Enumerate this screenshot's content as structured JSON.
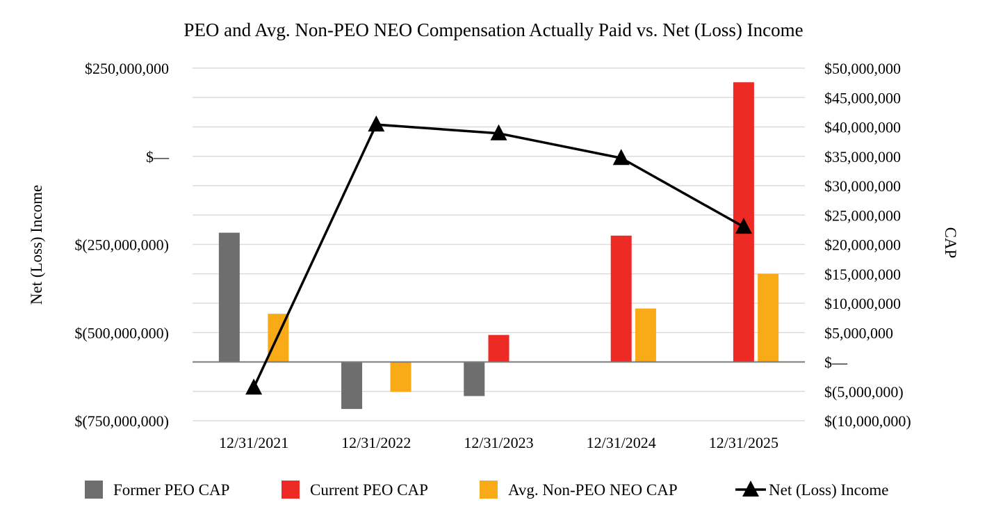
{
  "chart_data": {
    "type": "bar",
    "title": "PEO and Avg. Non-PEO NEO Compensation Actually Paid vs. Net (Loss) Income",
    "categories": [
      "12/31/2021",
      "12/31/2022",
      "12/31/2023",
      "12/31/2024",
      "12/31/2025"
    ],
    "left_axis": {
      "label": "Net (Loss) Income",
      "range": [
        -750000000,
        250000000
      ],
      "ticks": [
        250000000,
        0,
        -250000000,
        -500000000,
        -750000000
      ],
      "tick_labels": [
        "$250,000,000",
        "$—",
        "$(250,000,000)",
        "$(500,000,000)",
        "$(750,000,000)"
      ]
    },
    "right_axis": {
      "label": "CAP",
      "range": [
        -10000000,
        50000000
      ],
      "ticks": [
        50000000,
        45000000,
        40000000,
        35000000,
        30000000,
        25000000,
        20000000,
        15000000,
        10000000,
        5000000,
        0,
        -5000000,
        -10000000
      ],
      "tick_labels": [
        "$50,000,000",
        "$45,000,000",
        "$40,000,000",
        "$35,000,000",
        "$30,000,000",
        "$25,000,000",
        "$20,000,000",
        "$15,000,000",
        "$10,000,000",
        "$5,000,000",
        "$—",
        "$(5,000,000)",
        "$(10,000,000)"
      ]
    },
    "bar_series": [
      {
        "name": "Former PEO CAP",
        "color": "#6e6e6e",
        "values": [
          22000000,
          -8000000,
          -5800000,
          null,
          null
        ]
      },
      {
        "name": "Current PEO CAP",
        "color": "#ee2a24",
        "values": [
          null,
          null,
          4600000,
          21500000,
          47600000
        ]
      },
      {
        "name": "Avg. Non-PEO NEO CAP",
        "color": "#f9ab17",
        "values": [
          8200000,
          -5100000,
          null,
          9100000,
          15000000
        ]
      }
    ],
    "line_series": {
      "name": "Net (Loss) Income",
      "color": "#000000",
      "marker": "triangle",
      "axis": "left",
      "values": [
        -656000000,
        90000000,
        65000000,
        -5000000,
        -200000000
      ]
    },
    "legend_position": "bottom",
    "grid": true
  }
}
